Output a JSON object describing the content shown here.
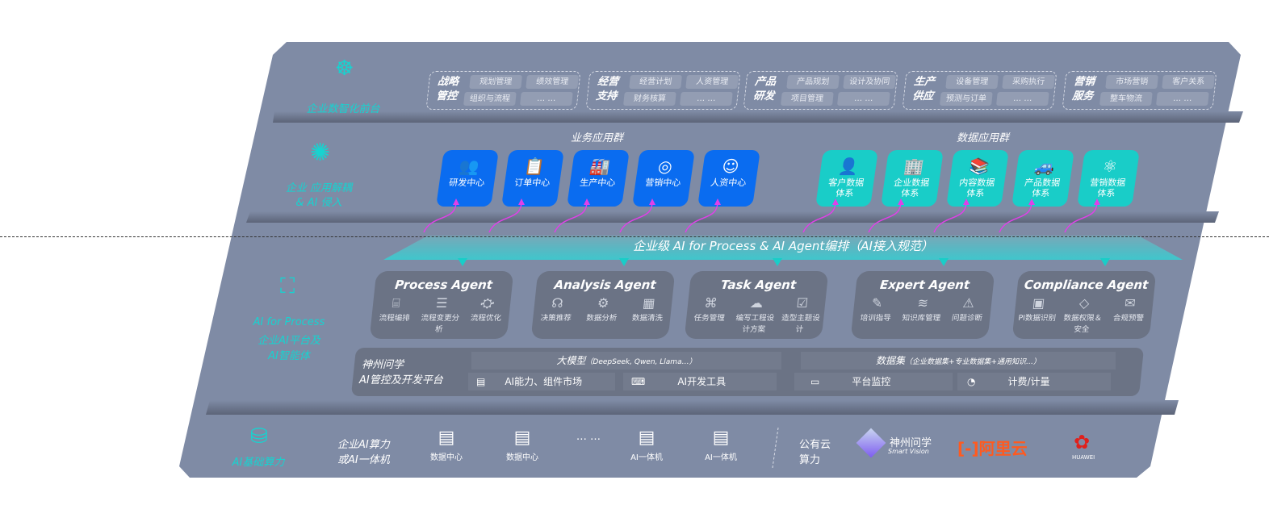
{
  "layers": {
    "front": {
      "label": "企业数智化前台",
      "icon": "brain-icon",
      "groups": [
        {
          "title": "战略\n管控",
          "items": [
            "规划管理",
            "绩效管理",
            "组织与流程",
            "… …"
          ]
        },
        {
          "title": "经营\n支持",
          "items": [
            "经营计划",
            "人资管理",
            "财务核算",
            "… …"
          ]
        },
        {
          "title": "产品\n研发",
          "items": [
            "产品规划",
            "设计及协同",
            "项目管理",
            "… …"
          ]
        },
        {
          "title": "生产\n供应",
          "items": [
            "设备管理",
            "采购执行",
            "预测与订单",
            "… …"
          ]
        },
        {
          "title": "营销\n服务",
          "items": [
            "市场营销",
            "客户关系",
            "整车物流",
            "… …"
          ]
        }
      ]
    },
    "apps": {
      "label1": "企业 应用解耦",
      "label2": "& AI 侵入",
      "icon": "molecule-icon",
      "business_title": "业务应用群",
      "business": [
        {
          "label": "研发中心",
          "icon": "users-icon"
        },
        {
          "label": "订单中心",
          "icon": "clipboard-icon"
        },
        {
          "label": "生产中心",
          "icon": "factory-icon"
        },
        {
          "label": "营销中心",
          "icon": "target-icon"
        },
        {
          "label": "人资中心",
          "icon": "person-icon"
        }
      ],
      "data_title": "数据应用群",
      "data": [
        {
          "label": "客户数据\n体系",
          "icon": "user-icon"
        },
        {
          "label": "企业数据\n体系",
          "icon": "building-icon"
        },
        {
          "label": "内容数据\n体系",
          "icon": "books-icon"
        },
        {
          "label": "产品数据\n体系",
          "icon": "car-icon"
        },
        {
          "label": "营销数据\n体系",
          "icon": "atom-icon"
        }
      ],
      "accent_business": "#0a6cf0",
      "accent_data": "#19cdc8",
      "connector_color": "#e040e8"
    },
    "process": {
      "label1": "AI for Process",
      "label2": "企业AI平台及",
      "label3": "AI智能体",
      "icon": "face-scan-icon",
      "banner": "企业级 AI for Process & AI Agent编排（AI接入规范）",
      "agents": [
        {
          "name": "Process Agent",
          "items": [
            "流程编排",
            "流程变更分析",
            "流程优化"
          ]
        },
        {
          "name": "Analysis Agent",
          "items": [
            "决策推荐",
            "数据分析",
            "数据清洗"
          ]
        },
        {
          "name": "Task Agent",
          "items": [
            "任务管理",
            "编写工程设计方案",
            "造型主题设计"
          ]
        },
        {
          "name": "Expert Agent",
          "items": [
            "培训指导",
            "知识库管理",
            "问题诊断"
          ]
        },
        {
          "name": "Compliance Agent",
          "items": [
            "PI数据识别",
            "数据权限＆安全",
            "合规预警"
          ]
        }
      ],
      "platform": {
        "title1": "神州问学",
        "title2": "AI管控及开发平台",
        "model": "大模型",
        "model_note": "（DeepSeek, Qwen, Llama…）",
        "dataset": "数据集",
        "dataset_note": "（企业数据集+专业数据集+通用知识…）",
        "cells": [
          "AI能力、组件市场",
          "AI开发工具",
          "平台监控",
          "计费/计量"
        ]
      }
    },
    "infra": {
      "label": "AI基础算力",
      "icon": "database-icon",
      "enterprise": "企业AI算力\n或AI一体机",
      "items": [
        "数据中心",
        "数据中心",
        "… …",
        "AI一体机",
        "AI一体机"
      ],
      "public": "公有云\n算力",
      "vendors": [
        {
          "name": "神州问学",
          "sub": "Smart Vision"
        },
        {
          "name": "阿里云",
          "color": "#ff5a1f"
        },
        {
          "name": "HUAWEI",
          "color": "#e0201b"
        }
      ]
    }
  }
}
